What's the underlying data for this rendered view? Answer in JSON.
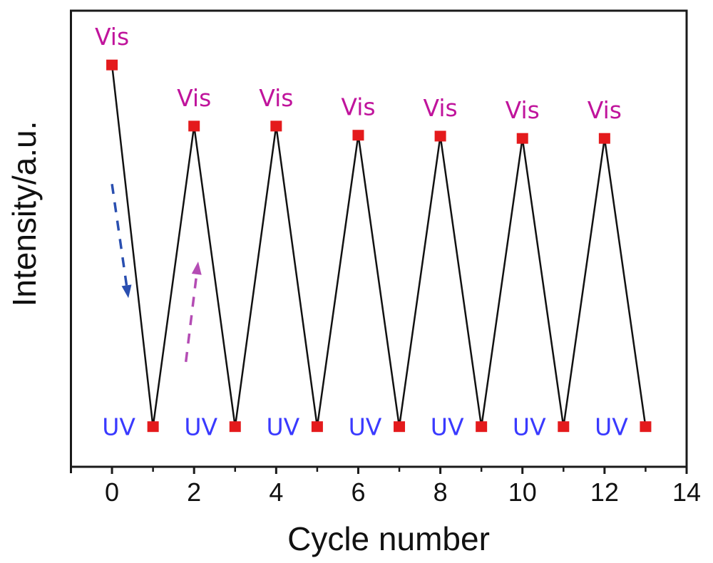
{
  "chart_data": {
    "type": "line",
    "title": "",
    "xlabel": "Cycle number",
    "ylabel": "Intensity/a.u.",
    "xlim": [
      -1,
      14
    ],
    "ylim": [
      0,
      100
    ],
    "x_ticks": [
      0,
      2,
      4,
      6,
      8,
      10,
      12,
      14
    ],
    "x_minor_ticks": [
      1,
      3,
      5,
      7,
      9,
      11,
      13
    ],
    "y_ticks": [],
    "grid": false,
    "legend": "none",
    "series": [
      {
        "name": "Intensity",
        "line_color": "#111111",
        "marker": "square",
        "marker_color": "#e41a1c",
        "x": [
          0,
          1,
          2,
          3,
          4,
          5,
          6,
          7,
          8,
          9,
          10,
          11,
          12,
          13
        ],
        "y": [
          88.1,
          8.8,
          74.7,
          8.8,
          74.7,
          8.8,
          72.7,
          8.8,
          72.5,
          8.8,
          72.0,
          8.8,
          72.0,
          8.8
        ]
      }
    ],
    "annotations": [
      {
        "text": "Vis",
        "x": 0,
        "kind": "vis",
        "color": "#c0149c"
      },
      {
        "text": "Vis",
        "x": 2,
        "kind": "vis",
        "color": "#c0149c"
      },
      {
        "text": "Vis",
        "x": 4,
        "kind": "vis",
        "color": "#c0149c"
      },
      {
        "text": "Vis",
        "x": 6,
        "kind": "vis",
        "color": "#c0149c"
      },
      {
        "text": "Vis",
        "x": 8,
        "kind": "vis",
        "color": "#c0149c"
      },
      {
        "text": "Vis",
        "x": 10,
        "kind": "vis",
        "color": "#c0149c"
      },
      {
        "text": "Vis",
        "x": 12,
        "kind": "vis",
        "color": "#c0149c"
      },
      {
        "text": "UV",
        "x": 1,
        "kind": "uv",
        "color": "#3a3aff"
      },
      {
        "text": "UV",
        "x": 3,
        "kind": "uv",
        "color": "#3a3aff"
      },
      {
        "text": "UV",
        "x": 5,
        "kind": "uv",
        "color": "#3a3aff"
      },
      {
        "text": "UV",
        "x": 7,
        "kind": "uv",
        "color": "#3a3aff"
      },
      {
        "text": "UV",
        "x": 9,
        "kind": "uv",
        "color": "#3a3aff"
      },
      {
        "text": "UV",
        "x": 11,
        "kind": "uv",
        "color": "#3a3aff"
      },
      {
        "text": "UV",
        "x": 13,
        "kind": "uv",
        "color": "#3a3aff"
      }
    ],
    "arrows": [
      {
        "name": "decrease-arrow",
        "direction": "down",
        "style": "dashed",
        "color": "#2a4fb0",
        "from": [
          0.0,
          62
        ],
        "to": [
          0.4,
          37
        ]
      },
      {
        "name": "increase-arrow",
        "direction": "up",
        "style": "dashed",
        "color": "#b44cb4",
        "from": [
          1.8,
          23
        ],
        "to": [
          2.1,
          45
        ]
      }
    ]
  }
}
